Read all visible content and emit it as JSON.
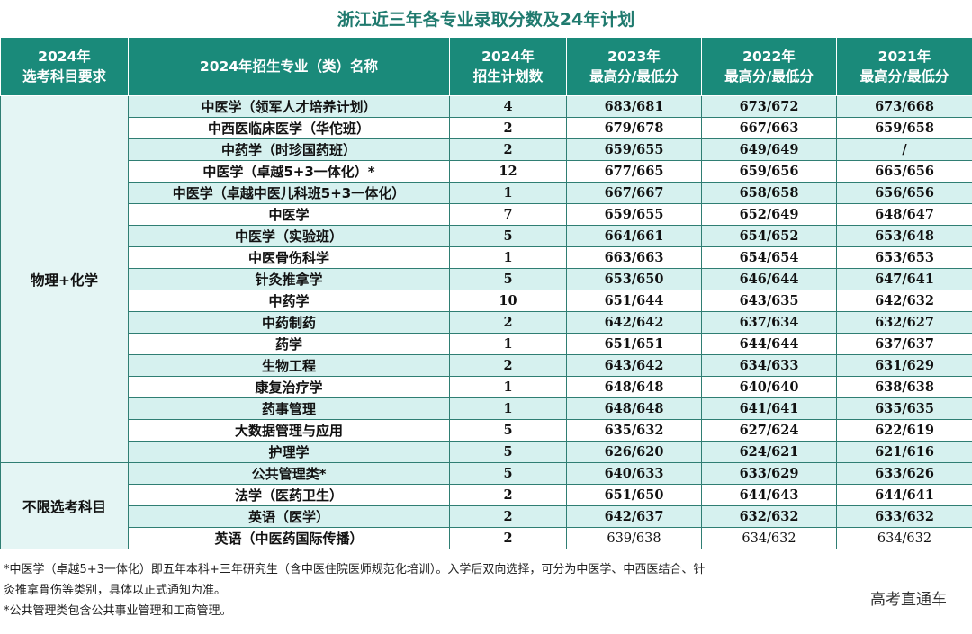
{
  "title": "浙江近三年各专业录取分数及24年计划",
  "headers": {
    "subject_line1": "2024年",
    "subject_line2": "选考科目要求",
    "major": "2024年招生专业（类）名称",
    "plan_line1": "2024年",
    "plan_line2": "招生计划数",
    "y2023_line1": "2023年",
    "y2023_line2": "最高分/最低分",
    "y2022_line1": "2022年",
    "y2022_line2": "最高分/最低分",
    "y2021_line1": "2021年",
    "y2021_line2": "最高分/最低分"
  },
  "groups": [
    {
      "subject": "物理+化学",
      "rows": [
        {
          "major": "中医学（领军人才培养计划）",
          "plan": "4",
          "y2023": "683/681",
          "y2022": "673/672",
          "y2021": "673/668"
        },
        {
          "major": "中西医临床医学（华佗班）",
          "plan": "2",
          "y2023": "679/678",
          "y2022": "667/663",
          "y2021": "659/658"
        },
        {
          "major": "中药学（时珍国药班）",
          "plan": "2",
          "y2023": "659/655",
          "y2022": "649/649",
          "y2021": "/"
        },
        {
          "major": "中医学（卓越5+3一体化）*",
          "plan": "12",
          "y2023": "677/665",
          "y2022": "659/656",
          "y2021": "665/656"
        },
        {
          "major": "中医学（卓越中医儿科班5+3一体化）",
          "plan": "1",
          "y2023": "667/667",
          "y2022": "658/658",
          "y2021": "656/656"
        },
        {
          "major": "中医学",
          "plan": "7",
          "y2023": "659/655",
          "y2022": "652/649",
          "y2021": "648/647"
        },
        {
          "major": "中医学（实验班）",
          "plan": "5",
          "y2023": "664/661",
          "y2022": "654/652",
          "y2021": "653/648"
        },
        {
          "major": "中医骨伤科学",
          "plan": "1",
          "y2023": "663/663",
          "y2022": "654/654",
          "y2021": "653/653"
        },
        {
          "major": "针灸推拿学",
          "plan": "5",
          "y2023": "653/650",
          "y2022": "646/644",
          "y2021": "647/641"
        },
        {
          "major": "中药学",
          "plan": "10",
          "y2023": "651/644",
          "y2022": "643/635",
          "y2021": "642/632"
        },
        {
          "major": "中药制药",
          "plan": "2",
          "y2023": "642/642",
          "y2022": "637/634",
          "y2021": "632/627"
        },
        {
          "major": "药学",
          "plan": "1",
          "y2023": "651/651",
          "y2022": "644/644",
          "y2021": "637/637"
        },
        {
          "major": "生物工程",
          "plan": "2",
          "y2023": "643/642",
          "y2022": "634/633",
          "y2021": "631/629"
        },
        {
          "major": "康复治疗学",
          "plan": "1",
          "y2023": "648/648",
          "y2022": "640/640",
          "y2021": "638/638"
        },
        {
          "major": "药事管理",
          "plan": "1",
          "y2023": "648/648",
          "y2022": "641/641",
          "y2021": "635/635"
        },
        {
          "major": "大数据管理与应用",
          "plan": "5",
          "y2023": "635/632",
          "y2022": "627/624",
          "y2021": "622/619"
        },
        {
          "major": "护理学",
          "plan": "5",
          "y2023": "626/620",
          "y2022": "624/621",
          "y2021": "621/616"
        }
      ]
    },
    {
      "subject": "不限选考科目",
      "rows": [
        {
          "major": "公共管理类*",
          "plan": "5",
          "y2023": "640/633",
          "y2022": "633/629",
          "y2021": "633/626"
        },
        {
          "major": "法学（医药卫生）",
          "plan": "2",
          "y2023": "651/650",
          "y2022": "644/643",
          "y2021": "644/641"
        },
        {
          "major": "英语（医学）",
          "plan": "2",
          "y2023": "642/637",
          "y2022": "632/632",
          "y2021": "633/632"
        },
        {
          "major": "英语（中医药国际传播）",
          "plan": "2",
          "y2023": "639/638",
          "y2022": "634/632",
          "y2021": "634/632"
        }
      ]
    }
  ],
  "notes": [
    "*中医学（卓越5+3一体化）即五年本科+三年研究生（含中医住院医师规范化培训）。入学后双向选择，可分为中医学、中西医结合、针",
    "灸推拿骨伤等类别，具体以正式通知为准。",
    "*公共管理类包含公共事业管理和工商管理。"
  ],
  "watermark": "高考直通车",
  "colors": {
    "header_bg": "#1a8a7a",
    "title": "#1f7a6e",
    "row_shade": "#d6f1ef",
    "group_bg": "#e4f5f4"
  }
}
